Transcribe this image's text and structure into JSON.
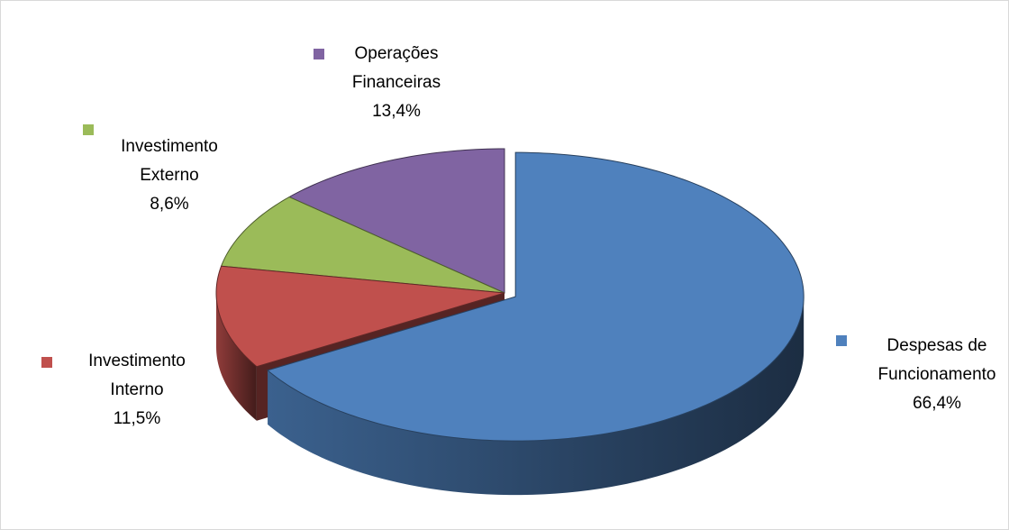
{
  "chart_data": {
    "type": "pie3d",
    "categories": [
      "Despesas de Funcionamento",
      "Investimento Interno",
      "Investimento Externo",
      "Operações Financeiras"
    ],
    "values": [
      66.4,
      11.5,
      8.6,
      13.4
    ],
    "value_labels": [
      "66,4%",
      "11,5%",
      "8,6%",
      "13,4%"
    ],
    "colors": [
      "#4f81bd",
      "#c0504d",
      "#9bbb59",
      "#8064a2"
    ]
  }
}
